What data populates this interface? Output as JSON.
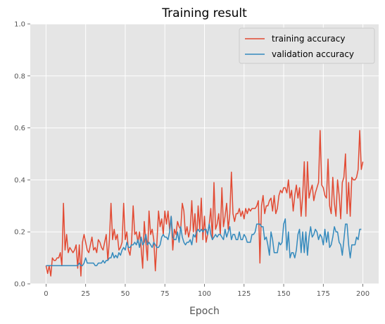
{
  "chart_data": {
    "type": "line",
    "title": "Training result",
    "xlabel": "Epoch",
    "ylabel": "",
    "xlim": [
      -9.95,
      209.95
    ],
    "ylim": [
      0,
      1
    ],
    "xticks": [
      0,
      25,
      50,
      75,
      100,
      125,
      150,
      175,
      200
    ],
    "yticks": [
      0.0,
      0.2,
      0.4,
      0.6,
      0.8,
      1.0
    ],
    "xtick_labels": [
      "0",
      "25",
      "50",
      "75",
      "100",
      "125",
      "150",
      "175",
      "200"
    ],
    "ytick_labels": [
      "0.0",
      "0.2",
      "0.4",
      "0.6",
      "0.8",
      "1.0"
    ],
    "grid": true,
    "legend_position": "top-right",
    "series": [
      {
        "name": "training accuracy",
        "color": "#E24A33",
        "values": [
          0.07,
          0.04,
          0.07,
          0.03,
          0.1,
          0.09,
          0.09,
          0.1,
          0.1,
          0.12,
          0.07,
          0.31,
          0.13,
          0.19,
          0.12,
          0.14,
          0.13,
          0.12,
          0.13,
          0.15,
          0.06,
          0.15,
          0.03,
          0.16,
          0.19,
          0.16,
          0.13,
          0.12,
          0.15,
          0.18,
          0.13,
          0.14,
          0.12,
          0.17,
          0.16,
          0.14,
          0.13,
          0.16,
          0.19,
          0.09,
          0.17,
          0.31,
          0.17,
          0.21,
          0.17,
          0.19,
          0.13,
          0.14,
          0.16,
          0.31,
          0.17,
          0.2,
          0.13,
          0.11,
          0.16,
          0.3,
          0.19,
          0.2,
          0.16,
          0.2,
          0.14,
          0.06,
          0.24,
          0.16,
          0.09,
          0.28,
          0.19,
          0.21,
          0.17,
          0.05,
          0.16,
          0.28,
          0.22,
          0.25,
          0.19,
          0.28,
          0.23,
          0.28,
          0.21,
          0.26,
          0.13,
          0.21,
          0.19,
          0.24,
          0.22,
          0.21,
          0.31,
          0.28,
          0.19,
          0.22,
          0.18,
          0.21,
          0.32,
          0.2,
          0.27,
          0.16,
          0.3,
          0.21,
          0.33,
          0.17,
          0.26,
          0.16,
          0.19,
          0.23,
          0.29,
          0.17,
          0.39,
          0.21,
          0.23,
          0.27,
          0.19,
          0.37,
          0.22,
          0.26,
          0.31,
          0.21,
          0.27,
          0.43,
          0.27,
          0.24,
          0.27,
          0.27,
          0.29,
          0.26,
          0.28,
          0.25,
          0.29,
          0.27,
          0.29,
          0.28,
          0.29,
          0.29,
          0.29,
          0.3,
          0.32,
          0.08,
          0.3,
          0.34,
          0.27,
          0.3,
          0.3,
          0.32,
          0.33,
          0.28,
          0.34,
          0.27,
          0.29,
          0.34,
          0.36,
          0.35,
          0.37,
          0.37,
          0.35,
          0.4,
          0.33,
          0.36,
          0.28,
          0.34,
          0.38,
          0.33,
          0.37,
          0.26,
          0.34,
          0.47,
          0.26,
          0.47,
          0.33,
          0.36,
          0.38,
          0.32,
          0.35,
          0.37,
          0.39,
          0.59,
          0.38,
          0.37,
          0.34,
          0.33,
          0.48,
          0.3,
          0.27,
          0.41,
          0.31,
          0.26,
          0.4,
          0.34,
          0.25,
          0.39,
          0.41,
          0.5,
          0.27,
          0.39,
          0.26,
          0.41,
          0.4,
          0.4,
          0.41,
          0.44,
          0.59,
          0.44,
          0.47
        ]
      },
      {
        "name": "validation accuracy",
        "color": "#348ABD",
        "values": [
          0.07,
          0.07,
          0.07,
          0.07,
          0.07,
          0.07,
          0.07,
          0.07,
          0.07,
          0.07,
          0.07,
          0.07,
          0.07,
          0.07,
          0.07,
          0.07,
          0.07,
          0.07,
          0.07,
          0.07,
          0.07,
          0.08,
          0.07,
          0.07,
          0.08,
          0.1,
          0.08,
          0.08,
          0.08,
          0.08,
          0.08,
          0.07,
          0.07,
          0.08,
          0.08,
          0.08,
          0.09,
          0.08,
          0.09,
          0.09,
          0.1,
          0.1,
          0.12,
          0.1,
          0.11,
          0.1,
          0.12,
          0.11,
          0.13,
          0.14,
          0.13,
          0.16,
          0.14,
          0.14,
          0.15,
          0.15,
          0.16,
          0.15,
          0.17,
          0.14,
          0.18,
          0.15,
          0.16,
          0.19,
          0.15,
          0.16,
          0.15,
          0.14,
          0.16,
          0.15,
          0.14,
          0.14,
          0.15,
          0.18,
          0.19,
          0.18,
          0.18,
          0.17,
          0.2,
          0.26,
          0.18,
          0.17,
          0.17,
          0.2,
          0.16,
          0.22,
          0.18,
          0.16,
          0.15,
          0.16,
          0.16,
          0.17,
          0.15,
          0.19,
          0.18,
          0.2,
          0.21,
          0.2,
          0.21,
          0.2,
          0.21,
          0.21,
          0.19,
          0.23,
          0.19,
          0.17,
          0.18,
          0.19,
          0.18,
          0.19,
          0.19,
          0.18,
          0.17,
          0.21,
          0.18,
          0.2,
          0.22,
          0.17,
          0.19,
          0.19,
          0.17,
          0.17,
          0.2,
          0.17,
          0.17,
          0.19,
          0.18,
          0.16,
          0.16,
          0.16,
          0.19,
          0.19,
          0.2,
          0.23,
          0.23,
          0.23,
          0.22,
          0.22,
          0.17,
          0.18,
          0.15,
          0.11,
          0.2,
          0.17,
          0.12,
          0.12,
          0.12,
          0.16,
          0.15,
          0.16,
          0.23,
          0.25,
          0.13,
          0.2,
          0.1,
          0.12,
          0.12,
          0.1,
          0.13,
          0.19,
          0.21,
          0.12,
          0.2,
          0.12,
          0.2,
          0.11,
          0.18,
          0.22,
          0.18,
          0.19,
          0.21,
          0.2,
          0.17,
          0.19,
          0.18,
          0.15,
          0.21,
          0.16,
          0.2,
          0.14,
          0.15,
          0.18,
          0.22,
          0.2,
          0.2,
          0.16,
          0.15,
          0.11,
          0.17,
          0.23,
          0.23,
          0.15,
          0.1,
          0.15,
          0.15,
          0.15,
          0.18,
          0.17,
          0.21,
          0.21
        ]
      }
    ]
  }
}
